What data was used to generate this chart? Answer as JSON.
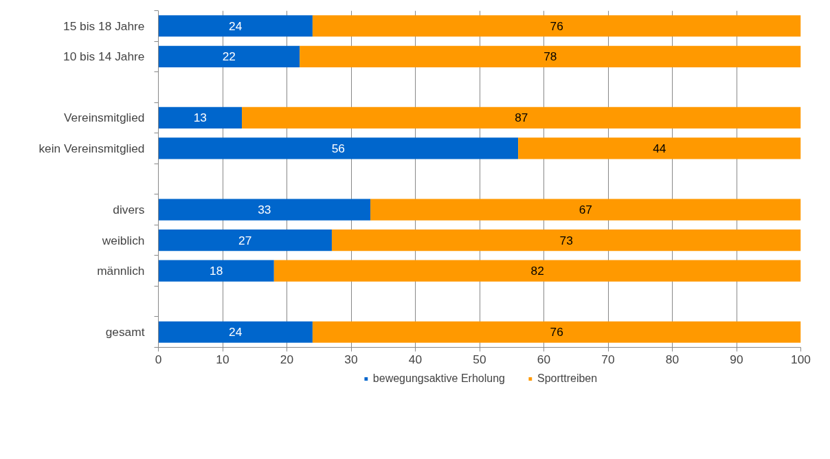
{
  "chart_data": {
    "type": "bar",
    "orientation": "horizontal",
    "stacked": true,
    "categories": [
      "15 bis 18 Jahre",
      "10 bis 14 Jahre",
      null,
      "Vereinsmitglied",
      "kein Vereinsmitglied",
      null,
      "divers",
      "weiblich",
      "männlich",
      null,
      "gesamt"
    ],
    "series": [
      {
        "name": "bewegungsaktive Erholung",
        "color": "#0066cc",
        "values": [
          24,
          22,
          null,
          13,
          56,
          null,
          33,
          27,
          18,
          null,
          24
        ]
      },
      {
        "name": "Sporttreiben",
        "color": "#ff9900",
        "values": [
          76,
          78,
          null,
          87,
          44,
          null,
          67,
          73,
          82,
          null,
          76
        ]
      }
    ],
    "xlim": [
      0,
      100
    ],
    "xticks": [
      0,
      10,
      20,
      30,
      40,
      50,
      60,
      70,
      80,
      90,
      100
    ],
    "grid": "x",
    "legend": "bottom",
    "data_labels": true
  }
}
